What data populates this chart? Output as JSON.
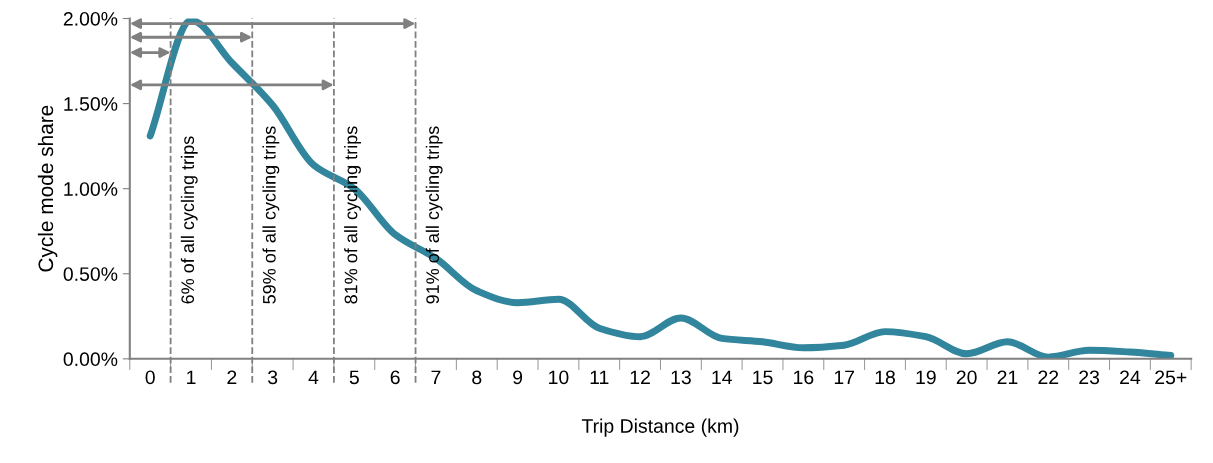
{
  "chart_data": {
    "type": "line",
    "xlabel": "Trip Distance (km)",
    "ylabel": "Cycle mode share",
    "categories": [
      "0",
      "1",
      "2",
      "3",
      "4",
      "5",
      "6",
      "7",
      "8",
      "9",
      "10",
      "11",
      "12",
      "13",
      "14",
      "15",
      "16",
      "17",
      "18",
      "19",
      "20",
      "21",
      "22",
      "23",
      "24",
      "25+"
    ],
    "series": [
      {
        "color": "#31859c",
        "values": [
          1.31,
          1.99,
          1.74,
          1.49,
          1.14,
          1.0,
          0.73,
          0.59,
          0.4,
          0.33,
          0.35,
          0.18,
          0.13,
          0.24,
          0.12,
          0.1,
          0.065,
          0.08,
          0.16,
          0.13,
          0.03,
          0.1,
          0.01,
          0.05,
          0.04,
          0.02
        ]
      }
    ],
    "ylim": [
      0,
      2
    ],
    "yticks": [
      {
        "value": 0,
        "label": "0.00%"
      },
      {
        "value": 0.5,
        "label": "0.50%"
      },
      {
        "value": 1,
        "label": "1.00%"
      },
      {
        "value": 1.5,
        "label": "1.50%"
      },
      {
        "value": 2,
        "label": "2.00%"
      }
    ],
    "grid": false,
    "legend": false,
    "marker": "none",
    "line_style": "solid",
    "annotations": [
      "6% of all cycling trips",
      "59% of all cycling trips",
      "81% of all cycling trips",
      "91% of all cycling trips"
    ]
  }
}
